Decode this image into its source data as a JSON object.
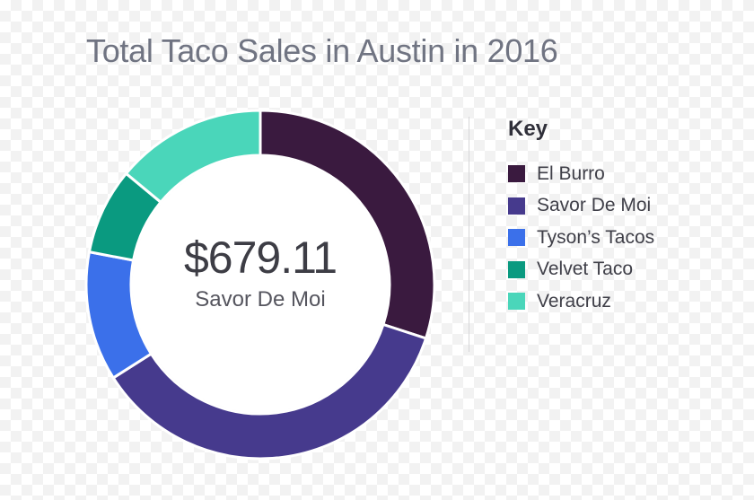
{
  "chart_data": {
    "type": "pie",
    "title": "Total Taco Sales in Austin in 2016",
    "center_value": "$679.11",
    "center_label": "Savor De Moi",
    "legend_title": "Key",
    "legend_position": "right",
    "categories": [
      "El Burro",
      "Savor De Moi",
      "Tyson’s Tacos",
      "Velvet Taco",
      "Veracruz"
    ],
    "values": [
      30,
      36,
      12,
      8,
      14
    ],
    "colors": [
      "#3a1a3f",
      "#463a8d",
      "#3b70ea",
      "#0a9a80",
      "#4ad6ba"
    ]
  }
}
